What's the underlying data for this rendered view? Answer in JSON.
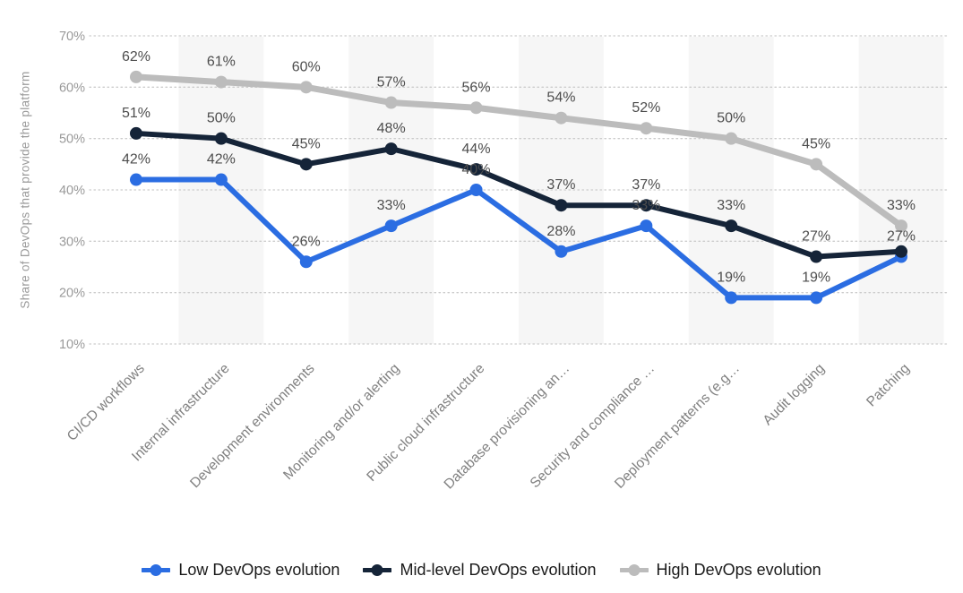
{
  "chart_data": {
    "type": "line",
    "title": "",
    "ylabel": "Share of DevOps that provide the platform",
    "xlabel": "",
    "ylim": [
      10,
      70
    ],
    "yticks": [
      10,
      20,
      30,
      40,
      50,
      60,
      70
    ],
    "ytick_suffix": "%",
    "grid": "horizontal-dotted",
    "legend_position": "bottom-center",
    "categories": [
      "CI/CD workflows",
      "Internal infrastructure",
      "Development environments",
      "Monitoring and/or alerting",
      "Public cloud infrastructure",
      "Database provisioning an…",
      "Security and compliance …",
      "Deployment patterns (e.g…",
      "Audit logging",
      "Patching"
    ],
    "series": [
      {
        "name": "Low DevOps evolution",
        "color": "#2b6de2",
        "values": [
          42,
          42,
          26,
          33,
          40,
          28,
          33,
          19,
          19,
          27
        ],
        "labels": [
          "42%",
          "42%",
          "26%",
          "33%",
          "40%",
          "28%",
          "33%",
          "19%",
          "19%",
          "27%"
        ]
      },
      {
        "name": "Mid-level DevOps evolution",
        "color": "#152438",
        "values": [
          51,
          50,
          45,
          48,
          44,
          37,
          37,
          33,
          27,
          28
        ],
        "labels": [
          "51%",
          "50%",
          "45%",
          "48%",
          "44%",
          "37%",
          "37%",
          "33%",
          "27%",
          ""
        ]
      },
      {
        "name": "High DevOps evolution",
        "color": "#bcbcbc",
        "values": [
          62,
          61,
          60,
          57,
          56,
          54,
          52,
          50,
          45,
          33
        ],
        "labels": [
          "62%",
          "61%",
          "60%",
          "57%",
          "56%",
          "54%",
          "52%",
          "50%",
          "45%",
          "33%"
        ]
      }
    ],
    "colors": {
      "stripe_bg": "#f6f6f6",
      "gridline": "#cccccc",
      "axis_text": "#999999",
      "category_text": "#808080",
      "data_label_text": "#4d4d4d"
    }
  }
}
